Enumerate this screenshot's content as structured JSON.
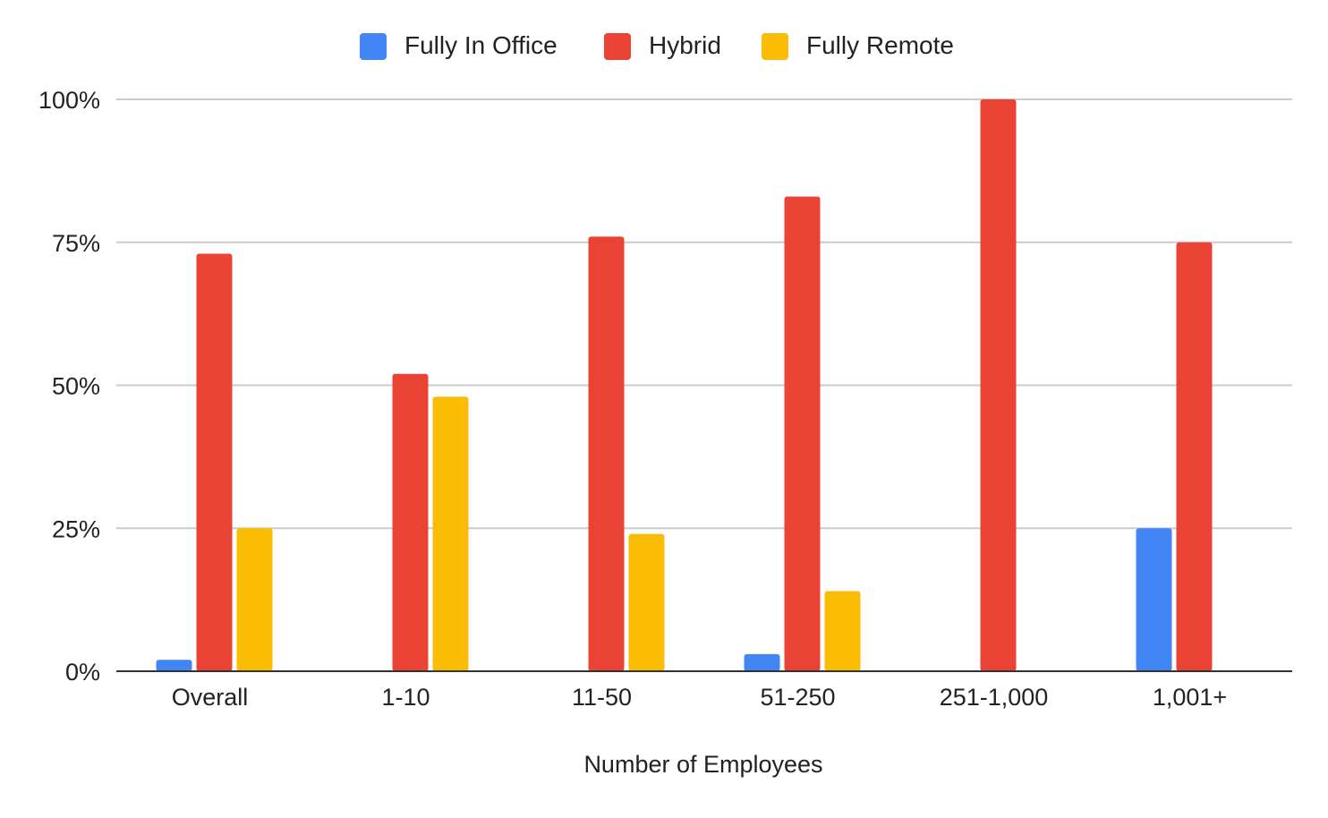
{
  "chart_data": {
    "type": "bar",
    "title": "",
    "xlabel": "Number of Employees",
    "ylabel": "",
    "categories": [
      "Overall",
      "1-10",
      "11-50",
      "51-250",
      "251-1,000",
      "1,001+"
    ],
    "series": [
      {
        "name": "Fully In Office",
        "color": "#4285F4",
        "values": [
          2,
          0,
          0,
          3,
          0,
          25
        ]
      },
      {
        "name": "Hybrid",
        "color": "#EA4335",
        "values": [
          73,
          52,
          76,
          83,
          100,
          75
        ]
      },
      {
        "name": "Fully Remote",
        "color": "#FBBC04",
        "values": [
          25,
          48,
          24,
          14,
          0,
          0
        ]
      }
    ],
    "ylim": [
      0,
      100
    ],
    "yticks": [
      "0%",
      "25%",
      "50%",
      "75%",
      "100%"
    ],
    "ytick_values": [
      0,
      25,
      50,
      75,
      100
    ],
    "grid": true,
    "legend_position": "top-center"
  }
}
